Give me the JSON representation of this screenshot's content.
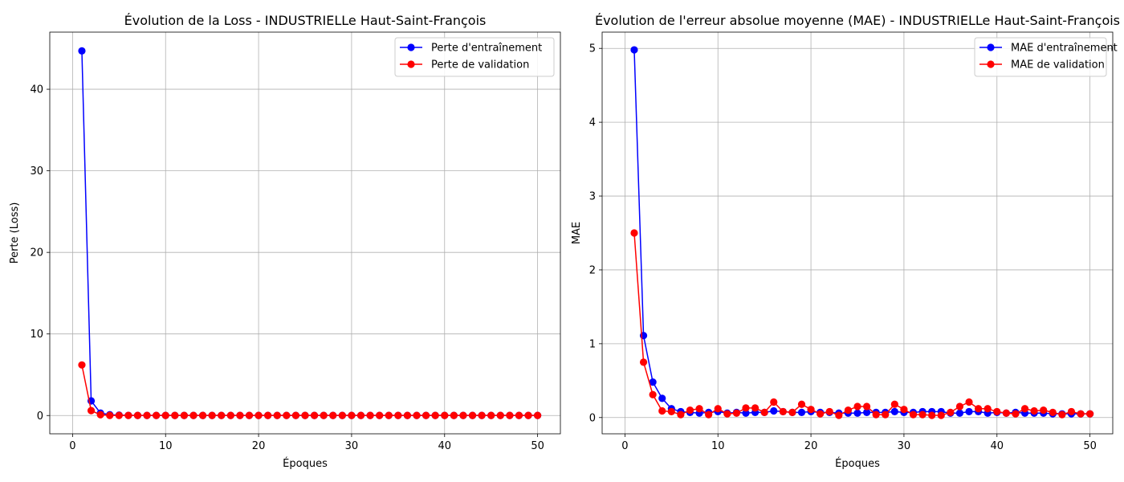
{
  "chart_data": [
    {
      "type": "line",
      "title": "Évolution de la Loss - INDUSTRIELLe Haut-Saint-François",
      "xlabel": "Époques",
      "ylabel": "Perte (Loss)",
      "xlim": [
        -2.45,
        52.45
      ],
      "ylim": [
        -2.24,
        47.0
      ],
      "xticks": [
        0,
        10,
        20,
        30,
        40,
        50
      ],
      "yticks": [
        0,
        10,
        20,
        30,
        40
      ],
      "grid": true,
      "legend_position": "top-right",
      "x": [
        1,
        2,
        3,
        4,
        5,
        6,
        7,
        8,
        9,
        10,
        11,
        12,
        13,
        14,
        15,
        16,
        17,
        18,
        19,
        20,
        21,
        22,
        23,
        24,
        25,
        26,
        27,
        28,
        29,
        30,
        31,
        32,
        33,
        34,
        35,
        36,
        37,
        38,
        39,
        40,
        41,
        42,
        43,
        44,
        45,
        46,
        47,
        48,
        49,
        50
      ],
      "series": [
        {
          "name": "Perte d'entraînement",
          "color": "#0000ff",
          "values": [
            44.7,
            1.8,
            0.3,
            0.1,
            0.05,
            0.02,
            0.01,
            0.01,
            0.01,
            0.01,
            0.01,
            0.01,
            0.01,
            0.01,
            0.01,
            0.01,
            0.01,
            0.01,
            0.01,
            0.01,
            0.01,
            0.01,
            0.01,
            0.01,
            0.01,
            0.01,
            0.01,
            0.01,
            0.01,
            0.01,
            0.01,
            0.01,
            0.01,
            0.01,
            0.01,
            0.01,
            0.01,
            0.01,
            0.01,
            0.01,
            0.01,
            0.01,
            0.01,
            0.01,
            0.01,
            0.01,
            0.01,
            0.01,
            0.01,
            0.01
          ]
        },
        {
          "name": "Perte de validation",
          "color": "#ff0000",
          "values": [
            6.2,
            0.6,
            0.1,
            0.01,
            0.01,
            0.01,
            0.01,
            0.01,
            0.01,
            0.01,
            0.01,
            0.01,
            0.01,
            0.01,
            0.01,
            0.01,
            0.01,
            0.01,
            0.01,
            0.01,
            0.01,
            0.01,
            0.01,
            0.01,
            0.01,
            0.01,
            0.01,
            0.01,
            0.01,
            0.01,
            0.01,
            0.01,
            0.01,
            0.01,
            0.01,
            0.01,
            0.01,
            0.01,
            0.01,
            0.01,
            0.01,
            0.01,
            0.01,
            0.01,
            0.01,
            0.01,
            0.01,
            0.01,
            0.01,
            0.01
          ]
        }
      ]
    },
    {
      "type": "line",
      "title": "Évolution de l'erreur absolue moyenne (MAE) - INDUSTRIELLe Haut-Saint-François",
      "xlabel": "Époques",
      "ylabel": "MAE",
      "xlim": [
        -2.45,
        52.45
      ],
      "ylim": [
        -0.22,
        5.22
      ],
      "xticks": [
        0,
        10,
        20,
        30,
        40,
        50
      ],
      "yticks": [
        0,
        1,
        2,
        3,
        4,
        5
      ],
      "grid": true,
      "legend_position": "top-right",
      "x": [
        1,
        2,
        3,
        4,
        5,
        6,
        7,
        8,
        9,
        10,
        11,
        12,
        13,
        14,
        15,
        16,
        17,
        18,
        19,
        20,
        21,
        22,
        23,
        24,
        25,
        26,
        27,
        28,
        29,
        30,
        31,
        32,
        33,
        34,
        35,
        36,
        37,
        38,
        39,
        40,
        41,
        42,
        43,
        44,
        45,
        46,
        47,
        48,
        49,
        50
      ],
      "series": [
        {
          "name": "MAE d'entraînement",
          "color": "#0000ff",
          "values": [
            4.98,
            1.11,
            0.48,
            0.26,
            0.12,
            0.08,
            0.07,
            0.06,
            0.07,
            0.08,
            0.06,
            0.07,
            0.06,
            0.07,
            0.07,
            0.09,
            0.08,
            0.07,
            0.07,
            0.08,
            0.07,
            0.07,
            0.06,
            0.06,
            0.06,
            0.07,
            0.07,
            0.07,
            0.08,
            0.07,
            0.07,
            0.08,
            0.08,
            0.08,
            0.06,
            0.06,
            0.08,
            0.08,
            0.06,
            0.07,
            0.06,
            0.07,
            0.06,
            0.06,
            0.06,
            0.05,
            0.05,
            0.05,
            0.05,
            0.05
          ]
        },
        {
          "name": "MAE de validation",
          "color": "#ff0000",
          "values": [
            2.5,
            0.75,
            0.31,
            0.09,
            0.08,
            0.04,
            0.1,
            0.12,
            0.04,
            0.12,
            0.05,
            0.06,
            0.13,
            0.13,
            0.07,
            0.21,
            0.08,
            0.07,
            0.18,
            0.11,
            0.05,
            0.08,
            0.03,
            0.1,
            0.15,
            0.15,
            0.04,
            0.04,
            0.18,
            0.11,
            0.04,
            0.04,
            0.03,
            0.03,
            0.07,
            0.15,
            0.21,
            0.12,
            0.12,
            0.08,
            0.06,
            0.05,
            0.12,
            0.09,
            0.1,
            0.07,
            0.04,
            0.08,
            0.05,
            0.05
          ]
        }
      ]
    }
  ]
}
